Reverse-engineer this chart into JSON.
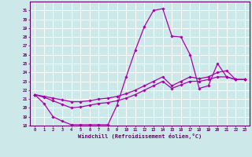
{
  "xlabel": "Windchill (Refroidissement éolien,°C)",
  "bg_color": "#cce8e8",
  "grid_color": "#ffffff",
  "line_color": "#aa00aa",
  "x_ticks": [
    0,
    1,
    2,
    3,
    4,
    5,
    6,
    7,
    8,
    9,
    10,
    11,
    12,
    13,
    14,
    15,
    16,
    17,
    18,
    19,
    20,
    21,
    22,
    23
  ],
  "ylim": [
    18,
    32
  ],
  "ytick_min": 18,
  "ytick_max": 31,
  "line1_x": [
    0,
    1,
    2,
    3,
    4,
    5,
    6,
    7,
    8,
    9,
    10,
    11,
    12,
    13,
    14,
    15,
    16,
    17,
    18,
    19,
    20,
    21,
    22,
    23
  ],
  "line1_y": [
    21.5,
    20.5,
    19.0,
    18.5,
    18.1,
    18.1,
    18.1,
    18.1,
    18.1,
    20.3,
    23.5,
    26.5,
    29.2,
    31.0,
    31.2,
    28.1,
    28.0,
    26.0,
    22.2,
    22.5,
    25.0,
    23.5,
    23.2,
    23.2
  ],
  "line2_x": [
    0,
    1,
    2,
    3,
    4,
    5,
    6,
    7,
    8,
    9,
    10,
    11,
    12,
    13,
    14,
    15,
    16,
    17,
    18,
    19,
    20,
    21,
    22,
    23
  ],
  "line2_y": [
    21.5,
    21.3,
    21.1,
    20.9,
    20.7,
    20.7,
    20.8,
    21.0,
    21.1,
    21.3,
    21.6,
    22.0,
    22.5,
    23.0,
    23.5,
    22.5,
    23.0,
    23.5,
    23.3,
    23.5,
    24.0,
    24.2,
    23.2,
    23.2
  ],
  "line3_x": [
    0,
    1,
    2,
    3,
    4,
    5,
    6,
    7,
    8,
    9,
    10,
    11,
    12,
    13,
    14,
    15,
    16,
    17,
    18,
    19,
    20,
    21,
    22,
    23
  ],
  "line3_y": [
    21.5,
    21.2,
    20.8,
    20.4,
    20.0,
    20.1,
    20.3,
    20.5,
    20.6,
    20.8,
    21.1,
    21.5,
    22.0,
    22.5,
    23.0,
    22.2,
    22.6,
    23.0,
    23.0,
    23.2,
    23.5,
    23.5,
    23.2,
    23.2
  ]
}
